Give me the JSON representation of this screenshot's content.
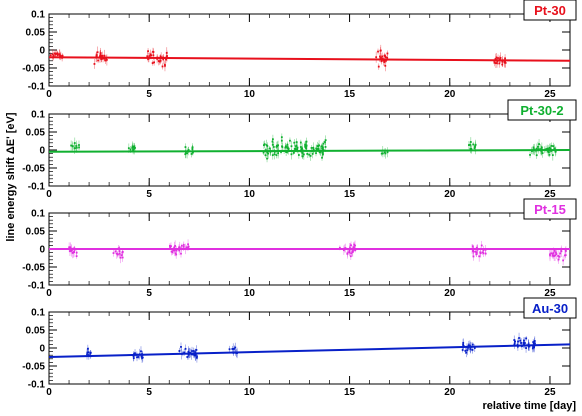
{
  "figure": {
    "ylabel": "line energy shift ΔE' [eV]",
    "xlabel": "relative time [day]"
  },
  "chart_data": [
    {
      "type": "scatter",
      "label": "Pt-30",
      "color": "#e8101c",
      "xlim": [
        0,
        26
      ],
      "ylim": [
        -0.1,
        0.1
      ],
      "yticks": [
        "0.1",
        "0.05",
        "0",
        "-0.05",
        "-0.1"
      ],
      "xticks": [
        "0",
        "5",
        "10",
        "15",
        "20",
        "25"
      ],
      "trend": {
        "x": [
          0,
          26
        ],
        "y": [
          -0.02,
          -0.03
        ]
      },
      "clusters": [
        {
          "x": [
            0.0,
            0.8
          ],
          "y_center": -0.015,
          "spread": 0.012,
          "n": 16
        },
        {
          "x": [
            2.2,
            2.9
          ],
          "y_center": -0.02,
          "spread": 0.025,
          "n": 22
        },
        {
          "x": [
            4.9,
            5.9
          ],
          "y_center": -0.025,
          "spread": 0.03,
          "n": 30
        },
        {
          "x": [
            16.3,
            16.9
          ],
          "y_center": -0.02,
          "spread": 0.035,
          "n": 22
        },
        {
          "x": [
            22.2,
            22.9
          ],
          "y_center": -0.03,
          "spread": 0.02,
          "n": 20
        }
      ]
    },
    {
      "type": "scatter",
      "label": "Pt-30-2",
      "color": "#10b030",
      "xlim": [
        0,
        26
      ],
      "ylim": [
        -0.1,
        0.1
      ],
      "yticks": [
        "0.1",
        "0.05",
        "0",
        "-0.05",
        "-0.1"
      ],
      "xticks": [
        "0",
        "5",
        "10",
        "15",
        "20",
        "25"
      ],
      "trend": {
        "x": [
          0,
          26
        ],
        "y": [
          -0.005,
          0.0
        ]
      },
      "clusters": [
        {
          "x": [
            1.1,
            1.5
          ],
          "y_center": 0.01,
          "spread": 0.015,
          "n": 10
        },
        {
          "x": [
            3.9,
            4.3
          ],
          "y_center": 0.005,
          "spread": 0.012,
          "n": 10
        },
        {
          "x": [
            6.8,
            7.2
          ],
          "y_center": -0.005,
          "spread": 0.02,
          "n": 12
        },
        {
          "x": [
            10.7,
            13.9
          ],
          "y_center": 0.005,
          "spread": 0.035,
          "n": 110
        },
        {
          "x": [
            16.6,
            16.9
          ],
          "y_center": -0.005,
          "spread": 0.015,
          "n": 6
        },
        {
          "x": [
            20.9,
            21.3
          ],
          "y_center": 0.01,
          "spread": 0.025,
          "n": 12
        },
        {
          "x": [
            24.0,
            25.3
          ],
          "y_center": 0.0,
          "spread": 0.02,
          "n": 40
        }
      ]
    },
    {
      "type": "scatter",
      "label": "Pt-15",
      "color": "#e030e0",
      "xlim": [
        0,
        26
      ],
      "ylim": [
        -0.1,
        0.1
      ],
      "yticks": [
        "0.1",
        "0.05",
        "0",
        "-0.05",
        "-0.1"
      ],
      "xticks": [
        "0",
        "5",
        "10",
        "15",
        "20",
        "25"
      ],
      "trend": {
        "x": [
          0,
          26
        ],
        "y": [
          0.0,
          0.0
        ]
      },
      "clusters": [
        {
          "x": [
            1.0,
            1.4
          ],
          "y_center": -0.005,
          "spread": 0.02,
          "n": 14
        },
        {
          "x": [
            3.2,
            3.7
          ],
          "y_center": -0.01,
          "spread": 0.02,
          "n": 14
        },
        {
          "x": [
            6.0,
            7.0
          ],
          "y_center": 0.0,
          "spread": 0.025,
          "n": 26
        },
        {
          "x": [
            14.5,
            15.4
          ],
          "y_center": 0.0,
          "spread": 0.025,
          "n": 24
        },
        {
          "x": [
            21.1,
            21.8
          ],
          "y_center": -0.005,
          "spread": 0.025,
          "n": 22
        },
        {
          "x": [
            25.0,
            25.8
          ],
          "y_center": -0.015,
          "spread": 0.02,
          "n": 22
        }
      ]
    },
    {
      "type": "scatter",
      "label": "Au-30",
      "color": "#0820c8",
      "xlim": [
        0,
        26
      ],
      "ylim": [
        -0.1,
        0.1
      ],
      "yticks": [
        "0.1",
        "0.05",
        "0",
        "-0.05",
        "-0.1"
      ],
      "xticks": [
        "0",
        "5",
        "10",
        "15",
        "20",
        "25"
      ],
      "trend": {
        "x": [
          0,
          26
        ],
        "y": [
          -0.025,
          0.01
        ]
      },
      "clusters": [
        {
          "x": [
            1.8,
            2.1
          ],
          "y_center": -0.015,
          "spread": 0.015,
          "n": 8
        },
        {
          "x": [
            4.2,
            4.7
          ],
          "y_center": -0.02,
          "spread": 0.02,
          "n": 14
        },
        {
          "x": [
            6.5,
            7.4
          ],
          "y_center": -0.015,
          "spread": 0.025,
          "n": 26
        },
        {
          "x": [
            8.9,
            9.4
          ],
          "y_center": -0.01,
          "spread": 0.015,
          "n": 10
        },
        {
          "x": [
            20.6,
            21.3
          ],
          "y_center": 0.0,
          "spread": 0.02,
          "n": 20
        },
        {
          "x": [
            23.2,
            24.3
          ],
          "y_center": 0.01,
          "spread": 0.025,
          "n": 32
        }
      ]
    }
  ]
}
